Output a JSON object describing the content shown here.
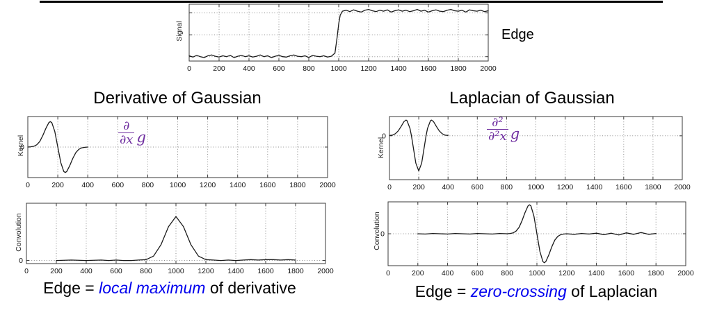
{
  "colors": {
    "accent_purple": "#7030A0",
    "accent_blue": "#0000EE",
    "curve": "#1a1a1a",
    "grid": "#8f8f8f"
  },
  "top": {
    "edge_label": "Edge"
  },
  "columns": {
    "left": {
      "title": "Derivative of Gaussian",
      "formula": {
        "numerator": "∂",
        "denominator": "∂x",
        "side": "g"
      },
      "caption": {
        "prefix": "Edge = ",
        "highlight": "local maximum",
        "suffix": " of derivative"
      }
    },
    "right": {
      "title": "Laplacian of Gaussian",
      "formula": {
        "numerator": "∂²",
        "denominator": "∂²x",
        "side": "g"
      },
      "caption": {
        "prefix": "Edge = ",
        "highlight": "zero-crossing",
        "suffix": " of Laplacian"
      }
    }
  },
  "chart_data": [
    {
      "id": "signal",
      "type": "line",
      "ylabel": "Signal",
      "xlim": [
        0,
        2000
      ],
      "ylim": [
        -0.1,
        1.2
      ],
      "xticks": [
        0,
        200,
        400,
        600,
        800,
        1000,
        1200,
        1400,
        1600,
        1800,
        2000
      ],
      "grid_y": [
        0,
        0.5,
        1.0
      ],
      "ytick_labels": [],
      "description": "Noisy step edge: level 0 until x≈975, rising to level ≈1.05 by x≈1025",
      "points": [
        [
          0,
          0.02
        ],
        [
          25,
          -0.01
        ],
        [
          50,
          0.03
        ],
        [
          75,
          0.0
        ],
        [
          100,
          -0.02
        ],
        [
          125,
          0.02
        ],
        [
          150,
          0.04
        ],
        [
          175,
          0.01
        ],
        [
          200,
          -0.01
        ],
        [
          225,
          0.02
        ],
        [
          250,
          0.0
        ],
        [
          275,
          0.03
        ],
        [
          300,
          -0.02
        ],
        [
          325,
          0.01
        ],
        [
          350,
          0.03
        ],
        [
          375,
          0.0
        ],
        [
          400,
          0.02
        ],
        [
          425,
          -0.01
        ],
        [
          450,
          0.01
        ],
        [
          475,
          0.04
        ],
        [
          500,
          0.0
        ],
        [
          525,
          0.02
        ],
        [
          550,
          -0.02
        ],
        [
          575,
          0.01
        ],
        [
          600,
          0.03
        ],
        [
          625,
          0.0
        ],
        [
          650,
          -0.01
        ],
        [
          675,
          0.02
        ],
        [
          700,
          0.04
        ],
        [
          725,
          0.01
        ],
        [
          750,
          0.0
        ],
        [
          775,
          0.02
        ],
        [
          800,
          -0.02
        ],
        [
          825,
          0.03
        ],
        [
          850,
          0.01
        ],
        [
          875,
          0.0
        ],
        [
          900,
          0.02
        ],
        [
          925,
          -0.01
        ],
        [
          950,
          0.01
        ],
        [
          975,
          0.08
        ],
        [
          990,
          0.45
        ],
        [
          1000,
          0.75
        ],
        [
          1010,
          0.95
        ],
        [
          1025,
          1.04
        ],
        [
          1050,
          1.06
        ],
        [
          1075,
          1.03
        ],
        [
          1100,
          1.07
        ],
        [
          1125,
          1.04
        ],
        [
          1150,
          1.02
        ],
        [
          1175,
          1.06
        ],
        [
          1200,
          1.08
        ],
        [
          1225,
          1.05
        ],
        [
          1250,
          1.03
        ],
        [
          1275,
          1.06
        ],
        [
          1300,
          1.04
        ],
        [
          1325,
          1.07
        ],
        [
          1350,
          1.02
        ],
        [
          1375,
          1.05
        ],
        [
          1400,
          1.07
        ],
        [
          1425,
          1.04
        ],
        [
          1450,
          1.06
        ],
        [
          1475,
          1.03
        ],
        [
          1500,
          1.05
        ],
        [
          1525,
          1.08
        ],
        [
          1550,
          1.04
        ],
        [
          1575,
          1.06
        ],
        [
          1600,
          1.02
        ],
        [
          1625,
          1.05
        ],
        [
          1650,
          1.07
        ],
        [
          1675,
          1.04
        ],
        [
          1700,
          1.03
        ],
        [
          1725,
          1.06
        ],
        [
          1750,
          1.08
        ],
        [
          1775,
          1.05
        ],
        [
          1800,
          1.04
        ],
        [
          1825,
          1.06
        ],
        [
          1850,
          1.02
        ],
        [
          1875,
          1.07
        ],
        [
          1900,
          1.05
        ],
        [
          1925,
          1.04
        ],
        [
          1950,
          1.06
        ],
        [
          1975,
          1.03
        ],
        [
          2000,
          1.05
        ]
      ]
    },
    {
      "id": "kernel_dog",
      "type": "line",
      "ylabel": "Kernel",
      "xlim": [
        0,
        2000
      ],
      "ylim": [
        -1.2,
        1.2
      ],
      "xticks": [
        0,
        200,
        400,
        600,
        800,
        1000,
        1200,
        1400,
        1600,
        1800,
        2000
      ],
      "grid_y": [
        0
      ],
      "ytick_labels": [
        {
          "v": 0,
          "label": "0"
        }
      ],
      "description": "First derivative of Gaussian kernel, peak +1 at x=150, trough -1 at x=250",
      "points": [
        [
          0,
          0.0
        ],
        [
          20,
          0.01
        ],
        [
          40,
          0.03
        ],
        [
          60,
          0.09
        ],
        [
          80,
          0.22
        ],
        [
          100,
          0.45
        ],
        [
          120,
          0.73
        ],
        [
          140,
          0.96
        ],
        [
          150,
          1.0
        ],
        [
          160,
          0.96
        ],
        [
          180,
          0.61
        ],
        [
          200,
          0.0
        ],
        [
          220,
          -0.61
        ],
        [
          240,
          -0.96
        ],
        [
          250,
          -1.0
        ],
        [
          260,
          -0.96
        ],
        [
          280,
          -0.73
        ],
        [
          300,
          -0.45
        ],
        [
          320,
          -0.22
        ],
        [
          340,
          -0.09
        ],
        [
          360,
          -0.03
        ],
        [
          380,
          -0.01
        ],
        [
          400,
          0.0
        ]
      ]
    },
    {
      "id": "conv_dog",
      "type": "line",
      "ylabel": "Convolution",
      "xlim": [
        0,
        2000
      ],
      "ylim": [
        -0.07,
        1.3
      ],
      "xticks": [
        0,
        200,
        400,
        600,
        800,
        1000,
        1200,
        1400,
        1600,
        1800,
        2000
      ],
      "grid_y": [
        0
      ],
      "ytick_labels": [
        {
          "v": 0,
          "label": "0"
        }
      ],
      "description": "Signal convolved with derivative of Gaussian: Gaussian bump, local maximum 1.0 at x=1000",
      "points": [
        [
          200,
          0.0
        ],
        [
          300,
          0.01
        ],
        [
          400,
          0.0
        ],
        [
          500,
          0.01
        ],
        [
          550,
          0.0
        ],
        [
          600,
          0.01
        ],
        [
          650,
          0.0
        ],
        [
          700,
          0.0
        ],
        [
          750,
          0.01
        ],
        [
          800,
          0.02
        ],
        [
          850,
          0.1
        ],
        [
          900,
          0.36
        ],
        [
          950,
          0.77
        ],
        [
          1000,
          1.0
        ],
        [
          1050,
          0.77
        ],
        [
          1100,
          0.36
        ],
        [
          1150,
          0.1
        ],
        [
          1200,
          0.02
        ],
        [
          1250,
          0.01
        ],
        [
          1300,
          0.0
        ],
        [
          1350,
          0.01
        ],
        [
          1400,
          0.0
        ],
        [
          1450,
          0.01
        ],
        [
          1500,
          0.02
        ],
        [
          1550,
          0.01
        ],
        [
          1600,
          0.02
        ],
        [
          1650,
          0.02
        ],
        [
          1700,
          0.01
        ],
        [
          1750,
          0.02
        ],
        [
          1800,
          0.01
        ]
      ]
    },
    {
      "id": "kernel_log",
      "type": "line",
      "ylabel": "Kernel",
      "xlim": [
        0,
        2000
      ],
      "ylim": [
        -1.25,
        0.55
      ],
      "xticks": [
        0,
        200,
        400,
        600,
        800,
        1000,
        1200,
        1400,
        1600,
        1800,
        2000
      ],
      "grid_y": [
        0
      ],
      "ytick_labels": [
        {
          "v": 0,
          "label": "0"
        }
      ],
      "description": "Laplacian of Gaussian kernel: positive lobes ≈+0.45 at x≈113 and x≈287, trough -1 at x=200",
      "points": [
        [
          0,
          0.01
        ],
        [
          20,
          0.02
        ],
        [
          40,
          0.06
        ],
        [
          60,
          0.14
        ],
        [
          80,
          0.27
        ],
        [
          100,
          0.41
        ],
        [
          113,
          0.45
        ],
        [
          120,
          0.43
        ],
        [
          140,
          0.21
        ],
        [
          150,
          0.0
        ],
        [
          160,
          -0.26
        ],
        [
          180,
          -0.78
        ],
        [
          200,
          -1.0
        ],
        [
          220,
          -0.78
        ],
        [
          240,
          -0.26
        ],
        [
          250,
          0.0
        ],
        [
          260,
          0.21
        ],
        [
          280,
          0.43
        ],
        [
          287,
          0.45
        ],
        [
          300,
          0.41
        ],
        [
          320,
          0.27
        ],
        [
          340,
          0.14
        ],
        [
          360,
          0.06
        ],
        [
          380,
          0.02
        ],
        [
          400,
          0.01
        ]
      ]
    },
    {
      "id": "conv_log",
      "type": "line",
      "ylabel": "Convolution",
      "xlim": [
        0,
        2000
      ],
      "ylim": [
        -1.1,
        1.1
      ],
      "xticks": [
        0,
        200,
        400,
        600,
        800,
        1000,
        1200,
        1400,
        1600,
        1800,
        2000
      ],
      "grid_y": [
        0
      ],
      "ytick_labels": [
        {
          "v": 0,
          "label": "0"
        }
      ],
      "description": "Signal convolved with Laplacian of Gaussian: peak +1 at x≈950, zero-crossing at x=1000, trough -1 at x≈1050",
      "points": [
        [
          200,
          0.0
        ],
        [
          250,
          -0.01
        ],
        [
          300,
          0.01
        ],
        [
          350,
          0.0
        ],
        [
          400,
          -0.01
        ],
        [
          450,
          0.01
        ],
        [
          500,
          0.0
        ],
        [
          550,
          -0.01
        ],
        [
          600,
          0.01
        ],
        [
          650,
          0.0
        ],
        [
          700,
          -0.01
        ],
        [
          750,
          0.01
        ],
        [
          800,
          0.0
        ],
        [
          820,
          0.01
        ],
        [
          840,
          0.03
        ],
        [
          860,
          0.09
        ],
        [
          880,
          0.22
        ],
        [
          900,
          0.45
        ],
        [
          920,
          0.73
        ],
        [
          940,
          0.96
        ],
        [
          950,
          1.0
        ],
        [
          960,
          0.96
        ],
        [
          980,
          0.61
        ],
        [
          1000,
          0.0
        ],
        [
          1020,
          -0.61
        ],
        [
          1040,
          -0.96
        ],
        [
          1050,
          -1.0
        ],
        [
          1060,
          -0.96
        ],
        [
          1080,
          -0.73
        ],
        [
          1100,
          -0.45
        ],
        [
          1120,
          -0.22
        ],
        [
          1140,
          -0.09
        ],
        [
          1160,
          -0.03
        ],
        [
          1180,
          -0.01
        ],
        [
          1200,
          0.0
        ],
        [
          1250,
          -0.02
        ],
        [
          1300,
          0.01
        ],
        [
          1350,
          -0.01
        ],
        [
          1400,
          0.02
        ],
        [
          1450,
          -0.03
        ],
        [
          1500,
          0.02
        ],
        [
          1550,
          -0.04
        ],
        [
          1600,
          0.03
        ],
        [
          1650,
          -0.02
        ],
        [
          1700,
          0.04
        ],
        [
          1750,
          -0.02
        ],
        [
          1800,
          0.01
        ]
      ]
    }
  ]
}
